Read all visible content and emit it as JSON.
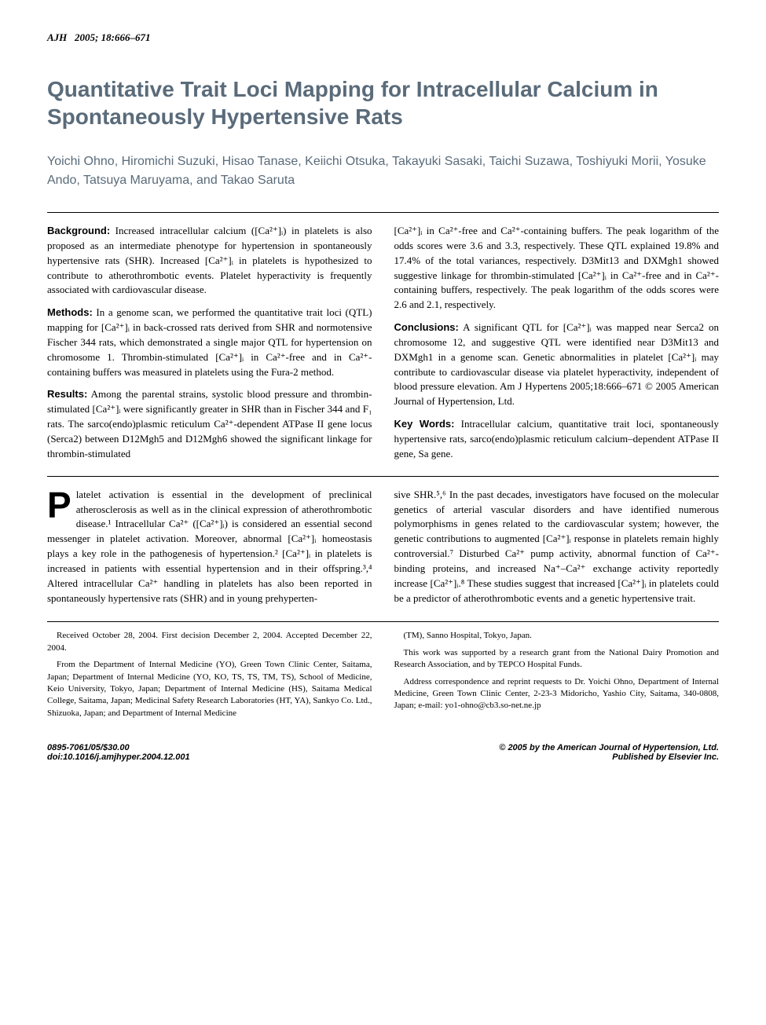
{
  "header": {
    "journal": "AJH",
    "year_pages": "2005; 18:666–671"
  },
  "title": "Quantitative Trait Loci Mapping for Intracellular Calcium in Spontaneously Hypertensive Rats",
  "authors": "Yoichi Ohno, Hiromichi Suzuki, Hisao Tanase, Keiichi Otsuka, Takayuki Sasaki, Taichi Suzawa, Toshiyuki Morii, Yosuke Ando, Tatsuya Maruyama, and Takao Saruta",
  "abstract": {
    "background_label": "Background:",
    "background": "Increased intracellular calcium ([Ca²⁺]ᵢ) in platelets is also proposed as an intermediate phenotype for hypertension in spontaneously hypertensive rats (SHR). Increased [Ca²⁺]ᵢ in platelets is hypothesized to contribute to atherothrombotic events. Platelet hyperactivity is frequently associated with cardiovascular disease.",
    "methods_label": "Methods:",
    "methods": "In a genome scan, we performed the quantitative trait loci (QTL) mapping for [Ca²⁺]ᵢ in back-crossed rats derived from SHR and normotensive Fischer 344 rats, which demonstrated a single major QTL for hypertension on chromosome 1. Thrombin-stimulated [Ca²⁺]ᵢ in Ca²⁺-free and in Ca²⁺-containing buffers was measured in platelets using the Fura-2 method.",
    "results_label": "Results:",
    "results_p1": "Among the parental strains, systolic blood pressure and thrombin-stimulated [Ca²⁺]ᵢ were significantly greater in SHR than in Fischer 344 and F₁ rats. The sarco(endo)plasmic reticulum Ca²⁺-dependent ATPase II gene locus (Serca2) between D12Mgh5 and D12Mgh6 showed the significant linkage for thrombin-stimulated",
    "results_p2": "[Ca²⁺]ᵢ in Ca²⁺-free and Ca²⁺-containing buffers. The peak logarithm of the odds scores were 3.6 and 3.3, respectively. These QTL explained 19.8% and 17.4% of the total variances, respectively. D3Mit13 and DXMgh1 showed suggestive linkage for thrombin-stimulated [Ca²⁺]ᵢ in Ca²⁺-free and in Ca²⁺-containing buffers, respectively. The peak logarithm of the odds scores were 2.6 and 2.1, respectively.",
    "conclusions_label": "Conclusions:",
    "conclusions": "A significant QTL for [Ca²⁺]ᵢ was mapped near Serca2 on chromosome 12, and suggestive QTL were identified near D3Mit13 and DXMgh1 in a genome scan. Genetic abnormalities in platelet [Ca²⁺]ᵢ may contribute to cardiovascular disease via platelet hyperactivity, independent of blood pressure elevation.   Am J Hypertens 2005;18:666–671 © 2005 American Journal of Hypertension, Ltd.",
    "keywords_label": "Key Words:",
    "keywords": "Intracellular calcium, quantitative trait loci, spontaneously hypertensive rats, sarco(endo)plasmic reticulum calcium–dependent ATPase II gene, Sa gene."
  },
  "body": {
    "dropcap": "P",
    "col1": "latelet activation is essential in the development of preclinical atherosclerosis as well as in the clinical expression of atherothrombotic disease.¹ Intracellular Ca²⁺ ([Ca²⁺]ᵢ) is considered an essential second messenger in platelet activation. Moreover, abnormal [Ca²⁺]ᵢ homeostasis plays a key role in the pathogenesis of hypertension.² [Ca²⁺]ᵢ in platelets is increased in patients with essential hypertension and in their offspring.³,⁴ Altered intracellular Ca²⁺ handling in platelets has also been reported in spontaneously hypertensive rats (SHR) and in young prehyperten-",
    "col2": "sive SHR.⁵,⁶ In the past decades, investigators have focused on the molecular genetics of arterial vascular disorders and have identified numerous polymorphisms in genes related to the cardiovascular system; however, the genetic contributions to augmented [Ca²⁺]ᵢ response in platelets remain highly controversial.⁷ Disturbed Ca²⁺ pump activity, abnormal function of Ca²⁺-binding proteins, and increased Na⁺–Ca²⁺ exchange activity reportedly increase [Ca²⁺]ᵢ.⁸ These studies suggest that increased [Ca²⁺]ᵢ in platelets could be a predictor of atherothrombotic events and a genetic hypertensive trait."
  },
  "footnotes": {
    "col1_p1": "Received October 28, 2004. First decision December 2, 2004. Accepted December 22, 2004.",
    "col1_p2": "From the Department of Internal Medicine (YO), Green Town Clinic Center, Saitama, Japan; Department of Internal Medicine (YO, KO, TS, TS, TM, TS), School of Medicine, Keio University, Tokyo, Japan; Department of Internal Medicine (HS), Saitama Medical College, Saitama, Japan; Medicinal Safety Research Laboratories (HT, YA), Sankyo Co. Ltd., Shizuoka, Japan; and Department of Internal Medicine",
    "col2_p1": "(TM), Sanno Hospital, Tokyo, Japan.",
    "col2_p2": "This work was supported by a research grant from the National Dairy Promotion and Research Association, and by TEPCO Hospital Funds.",
    "col2_p3": "Address correspondence and reprint requests to Dr. Yoichi Ohno, Department of Internal Medicine, Green Town Clinic Center, 2-23-3 Midoricho, Yashio City, Saitama, 340-0808, Japan; e-mail: yo1-ohno@cb3.so-net.ne.jp"
  },
  "bottom": {
    "left_line1": "0895-7061/05/$30.00",
    "left_line2": "doi:10.1016/j.amjhyper.2004.12.001",
    "right_line1": "© 2005 by the American Journal of Hypertension, Ltd.",
    "right_line2": "Published by Elsevier Inc."
  },
  "colors": {
    "title_color": "#5a6b7a",
    "author_color": "#5a6b7a",
    "text_color": "#000000",
    "background": "#ffffff",
    "link_color": "#3366cc"
  },
  "typography": {
    "title_fontsize": 28,
    "author_fontsize": 16,
    "body_fontsize": 13,
    "footnote_fontsize": 11,
    "dropcap_fontsize": 46
  }
}
